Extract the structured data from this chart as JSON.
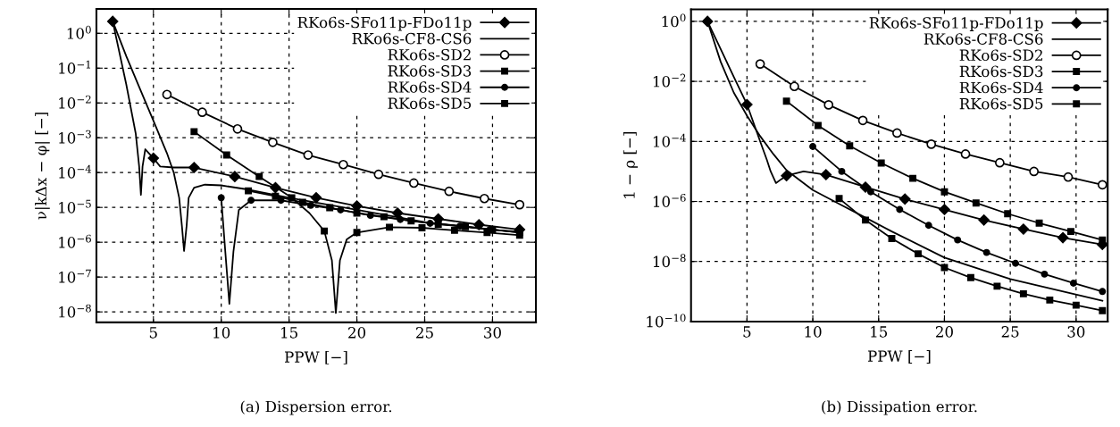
{
  "chart_data": [
    {
      "type": "line",
      "xlabel": "PPW [−]",
      "ylabel": "ν|kΔx − φ| [−]",
      "annotations": [
        "(a) Dispersion error."
      ],
      "log": "y",
      "grid": true,
      "legend": "top right",
      "xlim": [
        0.8,
        33.2
      ],
      "xticks": [
        5,
        10,
        15,
        20,
        25,
        30
      ],
      "ylim": [
        5e-09,
        5
      ],
      "yticks": [
        {
          "value": 1,
          "label": "10$^{0}$"
        },
        {
          "value": 0.1,
          "label": "10$^{−1}$"
        },
        {
          "value": 0.01,
          "label": "10$^{−2}$"
        },
        {
          "value": 0.001,
          "label": "10$^{−3}$"
        },
        {
          "value": 0.0001,
          "label": "10$^{−4}$"
        },
        {
          "value": 1e-05,
          "label": "10$^{−5}$"
        },
        {
          "value": 1e-06,
          "label": "10$^{−6}$"
        },
        {
          "value": 1e-07,
          "label": "10$^{−7}$"
        },
        {
          "value": 1e-08,
          "label": "10$^{−8}$"
        }
      ],
      "series": [
        {
          "color": "#000000",
          "x": [
            2,
            3,
            3.7,
            3.95,
            4.08,
            4.2,
            4.4,
            5,
            5.5,
            6.5,
            8,
            11,
            14,
            17,
            20,
            23,
            26,
            29,
            32
          ],
          "values": [
            2.2,
            0.034,
            0.0013,
            0.00015,
            2.3e-05,
            0.00015,
            0.00047,
            0.00026,
            0.00015,
            0.00014,
            0.00014,
            7.7e-05,
            3.7e-05,
            1.9e-05,
            1.1e-05,
            6.9e-06,
            4.7e-06,
            3.2e-06,
            2.3e-06
          ]
        },
        {
          "type": "scatter",
          "name": "RKo6s-SFo11p-FDo11p",
          "color": "#000000",
          "marker": "diamond",
          "x": [
            2,
            5,
            8,
            11,
            14,
            17,
            20,
            23,
            26,
            29,
            32
          ],
          "values": [
            2.2,
            0.00026,
            0.00014,
            7.7e-05,
            3.7e-05,
            1.9e-05,
            1.1e-05,
            6.9e-06,
            4.7e-06,
            3.2e-06,
            2.3e-06
          ]
        },
        {
          "name": "RKo6s-CF8-CS6",
          "color": "#000000",
          "x": [
            2,
            3,
            4,
            5,
            6,
            6.5,
            6.9,
            7.1,
            7.26,
            7.45,
            7.6,
            8,
            8.8,
            10,
            11.7,
            15,
            20,
            25,
            32
          ],
          "values": [
            2.2,
            0.22,
            0.026,
            0.0031,
            0.00036,
            0.0001,
            1.9e-05,
            3e-06,
            5.6e-07,
            3e-06,
            1.9e-05,
            3.7e-05,
            4.5e-05,
            4.3e-05,
            3.4e-05,
            1.9e-05,
            8.5e-06,
            3.8e-06,
            1.9e-06
          ]
        },
        {
          "name": "RKo6s-SD2",
          "color": "#000000",
          "marker": "open circle",
          "x": [
            6,
            8.6,
            11.2,
            13.8,
            16.4,
            19,
            21.6,
            24.2,
            26.8,
            29.4,
            32
          ],
          "values": [
            0.0175,
            0.0054,
            0.0018,
            0.00074,
            0.00032,
            0.00017,
            8.9e-05,
            5e-05,
            2.9e-05,
            1.8e-05,
            1.2e-05
          ]
        },
        {
          "color": "#000000",
          "x": [
            8,
            10.4,
            12.8,
            15.2,
            16.5,
            17.6,
            18.16,
            18.45,
            18.75,
            19.25,
            20,
            22.4,
            24.8,
            27.2,
            29.6,
            32
          ],
          "values": [
            0.0015,
            0.00032,
            7.7e-05,
            1.9e-05,
            6.9e-06,
            2.1e-06,
            3e-07,
            9.3e-09,
            3e-07,
            1.2e-06,
            1.9e-06,
            2.7e-06,
            2.6e-06,
            2.2e-06,
            1.9e-06,
            1.6e-06
          ]
        },
        {
          "type": "scatter",
          "name": "RKo6s-SD3",
          "color": "#000000",
          "marker": "square",
          "x": [
            8,
            10.4,
            12.8,
            15.2,
            17.6,
            20,
            22.4,
            24.8,
            27.2,
            29.6,
            32
          ],
          "values": [
            0.0015,
            0.00032,
            7.7e-05,
            1.9e-05,
            2.1e-06,
            1.9e-06,
            2.7e-06,
            2.6e-06,
            2.2e-06,
            1.9e-06,
            1.6e-06
          ]
        },
        {
          "color": "#000000",
          "x": [
            10,
            10.3,
            10.6,
            10.9,
            11.3,
            12.2,
            14.4,
            16.6,
            18.8,
            21,
            23.2,
            25.4,
            27.6,
            29.8,
            32
          ],
          "values": [
            1.9e-05,
            5.4e-07,
            1.7e-08,
            5.4e-07,
            8.5e-06,
            1.6e-05,
            1.6e-05,
            1.15e-05,
            8.5e-06,
            5.9e-06,
            4.5e-06,
            3.5e-06,
            2.9e-06,
            2.3e-06,
            2e-06
          ]
        },
        {
          "type": "scatter",
          "name": "RKo6s-SD4",
          "color": "#000000",
          "marker": "circle",
          "x": [
            10,
            12.2,
            14.4,
            16.6,
            18.8,
            21,
            23.2,
            25.4,
            27.6,
            29.8
          ],
          "values": [
            1.9e-05,
            1.6e-05,
            1.6e-05,
            1.15e-05,
            8.5e-06,
            5.9e-06,
            4.5e-06,
            3.5e-06,
            2.9e-06,
            2.3e-06
          ]
        },
        {
          "name": "RKo6s-SD5",
          "color": "#000000",
          "marker": "square",
          "x": [
            12,
            14,
            16,
            18,
            20,
            22,
            24,
            26,
            28,
            30,
            32
          ],
          "values": [
            3e-05,
            2.1e-05,
            1.4e-05,
            9.8e-06,
            6.9e-06,
            5.4e-06,
            4.1e-06,
            3.3e-06,
            2.8e-06,
            2.3e-06,
            1.9e-06
          ]
        }
      ]
    },
    {
      "type": "line",
      "xlabel": "PPW [−]",
      "ylabel": "1 − ρ [−]",
      "annotations": [
        "(b) Dissipation error."
      ],
      "log": "y",
      "grid": true,
      "legend": "top right",
      "xlim": [
        0.75,
        32.4
      ],
      "xticks": [
        5,
        10,
        15,
        20,
        25,
        30
      ],
      "ylim": [
        1e-10,
        2.5
      ],
      "yticks": [
        {
          "value": 1,
          "label": "10$^{0}$"
        },
        {
          "value": 0.01,
          "label": "10$^{−2}$"
        },
        {
          "value": 0.0001,
          "label": "10$^{−4}$"
        },
        {
          "value": 1e-06,
          "label": "10$^{−6}$"
        },
        {
          "value": 1e-08,
          "label": "10$^{−8}$"
        },
        {
          "value": 1e-10,
          "label": "10$^{−10}$"
        }
      ],
      "series": [
        {
          "color": "#000000",
          "x": [
            2,
            3,
            4,
            5,
            6,
            6.5,
            6.8,
            7.2,
            7.6,
            8,
            9.3,
            11,
            14,
            17,
            20,
            23,
            26,
            29,
            32
          ],
          "values": [
            1,
            0.12,
            0.014,
            0.0017,
            0.0001,
            2.5e-05,
            1e-05,
            4.1e-06,
            5.5e-06,
            7.2e-06,
            1e-05,
            7.8e-06,
            3e-06,
            1.2e-06,
            5.4e-07,
            2.4e-07,
            1.2e-07,
            6.2e-08,
            3.7e-08
          ]
        },
        {
          "type": "scatter",
          "name": "RKo6s-SFo11p-FDo11p",
          "color": "#000000",
          "marker": "diamond",
          "x": [
            2,
            5,
            8,
            11,
            14,
            17,
            20,
            23,
            26,
            29,
            32
          ],
          "values": [
            1,
            0.0017,
            7.2e-06,
            7.8e-06,
            3e-06,
            1.2e-06,
            5.4e-07,
            2.4e-07,
            1.2e-07,
            6.2e-08,
            3.7e-08
          ]
        },
        {
          "name": "RKo6s-CF8-CS6",
          "color": "#000000",
          "x": [
            2,
            3,
            4,
            5,
            6,
            7,
            8,
            10,
            12,
            14,
            16,
            20,
            25,
            32
          ],
          "values": [
            1,
            0.045,
            0.0042,
            0.00072,
            0.00015,
            3.8e-05,
            1.1e-05,
            2.4e-06,
            8.3e-07,
            2.9e-07,
            1e-07,
            1.35e-08,
            2.6e-09,
            4.9e-10
          ]
        },
        {
          "name": "RKo6s-SD2",
          "color": "#000000",
          "marker": "open circle",
          "x": [
            6,
            8.6,
            11.2,
            13.8,
            16.4,
            19,
            21.6,
            24.2,
            26.8,
            29.4,
            32
          ],
          "values": [
            0.038,
            0.0068,
            0.00165,
            0.0005,
            0.00019,
            8.1e-05,
            3.8e-05,
            1.95e-05,
            1e-05,
            6.5e-06,
            3.6e-06
          ]
        },
        {
          "name": "RKo6s-SD3",
          "color": "#000000",
          "marker": "square",
          "x": [
            8,
            10.4,
            12.8,
            15.2,
            17.6,
            20,
            22.4,
            24.8,
            27.2,
            29.6,
            32
          ],
          "values": [
            0.0022,
            0.00034,
            7.1e-05,
            1.9e-05,
            5.9e-06,
            2.1e-06,
            8.9e-07,
            3.9e-07,
            1.9e-07,
            1e-07,
            5.2e-08
          ]
        },
        {
          "name": "RKo6s-SD4",
          "color": "#000000",
          "marker": "circle",
          "x": [
            10,
            12.2,
            14.4,
            16.6,
            18.8,
            21,
            23.2,
            25.4,
            27.6,
            29.8,
            32
          ],
          "values": [
            6.8e-05,
            1e-05,
            2.1e-06,
            5.4e-07,
            1.6e-07,
            5.2e-08,
            2e-08,
            8.7e-09,
            3.8e-09,
            1.9e-09,
            1e-09
          ]
        },
        {
          "name": "RKo6s-SD5",
          "color": "#000000",
          "marker": "square",
          "x": [
            12,
            14,
            16,
            18,
            20,
            22,
            24,
            26,
            28,
            30,
            32
          ],
          "values": [
            1.26e-06,
            2.4e-07,
            5.8e-08,
            1.8e-08,
            6.3e-09,
            2.9e-09,
            1.5e-09,
            8.4e-10,
            5.2e-10,
            3.5e-10,
            2.3e-10
          ]
        }
      ]
    }
  ]
}
